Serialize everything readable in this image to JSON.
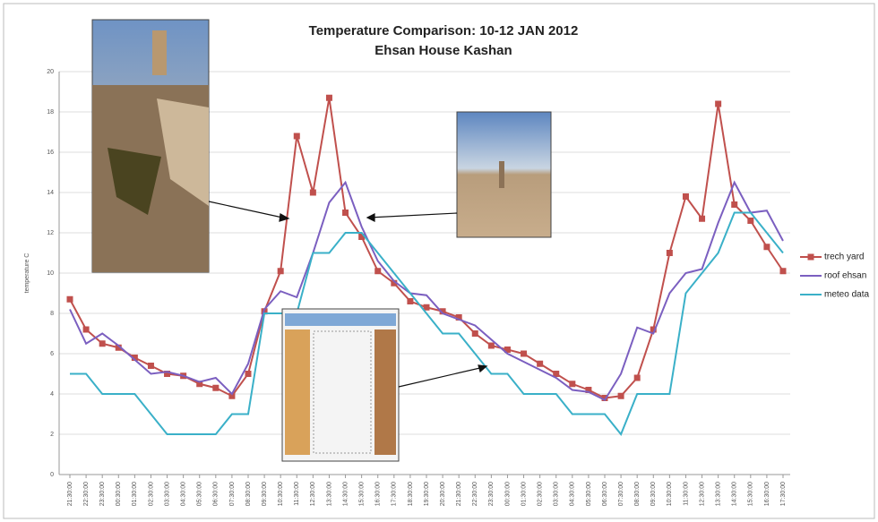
{
  "chart_data": {
    "type": "line",
    "title": "Temperature Comparison: 10-12 JAN 2012",
    "subtitle": "Ehsan House Kashan",
    "y_label": "temperature C",
    "categories": [
      "21:30:00",
      "22:30:00",
      "23:30:00",
      "00:30:00",
      "01:30:00",
      "02:30:00",
      "03:30:00",
      "04:30:00",
      "05:30:00",
      "06:30:00",
      "07:30:00",
      "08:30:00",
      "09:30:00",
      "10:30:00",
      "11:30:00",
      "12:30:00",
      "13:30:00",
      "14:30:00",
      "15:30:00",
      "16:30:00",
      "17:30:00",
      "18:30:00",
      "19:30:00",
      "20:30:00",
      "21:30:00",
      "22:30:00",
      "23:30:00",
      "00:30:00",
      "01:30:00",
      "02:30:00",
      "03:30:00",
      "04:30:00",
      "05:30:00",
      "06:30:00",
      "07:30:00",
      "08:30:00",
      "09:30:00",
      "10:30:00",
      "11:30:00",
      "12:30:00",
      "13:30:00",
      "14:30:00",
      "15:30:00",
      "16:30:00",
      "17:30:00"
    ],
    "series": [
      {
        "name": "trech yard",
        "color": "#c0504d",
        "marker": "square",
        "values": [
          8.7,
          7.2,
          6.5,
          6.3,
          5.8,
          5.4,
          5.0,
          4.9,
          4.5,
          4.3,
          3.9,
          5.0,
          8.1,
          10.1,
          16.8,
          14.0,
          18.7,
          13.0,
          11.8,
          10.1,
          9.5,
          8.6,
          8.3,
          8.1,
          7.8,
          7.0,
          6.4,
          6.2,
          6.0,
          5.5,
          5.0,
          4.5,
          4.2,
          3.8,
          3.9,
          4.8,
          7.2,
          11.0,
          13.8,
          12.7,
          18.4,
          13.4,
          12.6,
          11.3,
          10.1
        ]
      },
      {
        "name": "roof ehsan",
        "color": "#7b5fc0",
        "values": [
          8.2,
          6.5,
          7.0,
          6.4,
          5.7,
          5.0,
          5.1,
          4.9,
          4.6,
          4.8,
          4.0,
          5.5,
          8.2,
          9.1,
          8.8,
          11.0,
          13.5,
          14.5,
          12.3,
          10.6,
          9.6,
          9.0,
          8.9,
          8.0,
          7.7,
          7.4,
          6.7,
          6.0,
          5.6,
          5.2,
          4.8,
          4.2,
          4.1,
          3.7,
          5.0,
          7.3,
          7.0,
          9.0,
          10.0,
          10.2,
          12.5,
          14.5,
          13.0,
          13.1,
          11.6
        ]
      },
      {
        "name": "meteo data",
        "color": "#3ab0c8",
        "values": [
          5,
          5,
          4,
          4,
          4,
          3,
          2,
          2,
          2,
          2,
          3,
          3,
          8,
          8,
          8,
          11,
          11,
          12,
          12,
          11,
          10,
          9,
          8,
          7,
          7,
          6,
          5,
          5,
          4,
          4,
          4,
          3,
          3,
          3,
          2,
          4,
          4,
          4,
          9,
          10,
          11,
          13,
          13,
          12,
          11
        ]
      }
    ],
    "ylim": [
      0,
      20
    ],
    "yticks": [
      0,
      2,
      4,
      6,
      8,
      10,
      12,
      14,
      16,
      18,
      20
    ],
    "grid": true,
    "legend": "right"
  }
}
